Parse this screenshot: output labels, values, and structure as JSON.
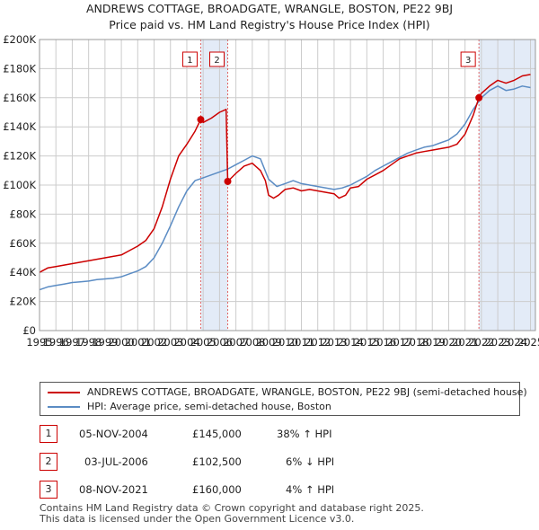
{
  "chart_data": {
    "type": "line",
    "title": "ANDREWS COTTAGE, BROADGATE, WRANGLE, BOSTON, PE22 9BJ",
    "subtitle": "Price paid vs. HM Land Registry's House Price Index (HPI)",
    "xlim": [
      1995.0,
      2025.3
    ],
    "ylim": [
      0,
      200000
    ],
    "x_ticks": [
      1995,
      1996,
      1997,
      1998,
      1999,
      2000,
      2001,
      2002,
      2003,
      2004,
      2005,
      2006,
      2007,
      2008,
      2009,
      2010,
      2011,
      2012,
      2013,
      2014,
      2015,
      2016,
      2017,
      2018,
      2019,
      2020,
      2021,
      2022,
      2023,
      2024,
      2025
    ],
    "x_tick_labels": [
      "1995",
      "1996",
      "1997",
      "1998",
      "1999",
      "2000",
      "2001",
      "2002",
      "2003",
      "2004",
      "2005",
      "2006",
      "2007",
      "2008",
      "2009",
      "2010",
      "2011",
      "2012",
      "2013",
      "2014",
      "2015",
      "2016",
      "2017",
      "2018",
      "2019",
      "2020",
      "2021",
      "2022",
      "2023",
      "2024",
      "2025"
    ],
    "y_ticks": [
      0,
      20000,
      40000,
      60000,
      80000,
      100000,
      120000,
      140000,
      160000,
      180000,
      200000
    ],
    "y_tick_labels": [
      "£0",
      "£20K",
      "£40K",
      "£60K",
      "£80K",
      "£100K",
      "£120K",
      "£140K",
      "£160K",
      "£180K",
      "£200K"
    ],
    "grid": true,
    "shaded_ranges": [
      [
        2004.85,
        2006.5
      ],
      [
        2021.85,
        2025.3
      ]
    ],
    "series": [
      {
        "name": "ANDREWS COTTAGE, BROADGATE, WRANGLE, BOSTON, PE22 9BJ (semi-detached house)",
        "color": "#cc0000",
        "x": [
          1995.0,
          1995.5,
          1996.0,
          1996.5,
          1997.0,
          1997.5,
          1998.0,
          1998.5,
          1999.0,
          1999.5,
          2000.0,
          2000.5,
          2001.0,
          2001.5,
          2002.0,
          2002.5,
          2003.0,
          2003.5,
          2004.0,
          2004.5,
          2004.85,
          2005.0,
          2005.5,
          2006.0,
          2006.4,
          2006.5,
          2007.0,
          2007.5,
          2008.0,
          2008.5,
          2008.8,
          2009.0,
          2009.3,
          2009.6,
          2010.0,
          2010.5,
          2011.0,
          2011.5,
          2012.0,
          2012.5,
          2013.0,
          2013.3,
          2013.7,
          2014.0,
          2014.5,
          2015.0,
          2015.5,
          2016.0,
          2016.5,
          2017.0,
          2017.5,
          2018.0,
          2018.5,
          2019.0,
          2019.5,
          2020.0,
          2020.5,
          2021.0,
          2021.5,
          2021.85,
          2022.0,
          2022.5,
          2023.0,
          2023.5,
          2024.0,
          2024.5,
          2025.0
        ],
        "values": [
          40000,
          43000,
          44000,
          45000,
          46000,
          47000,
          48000,
          49000,
          50000,
          51000,
          52000,
          55000,
          58000,
          62000,
          70000,
          85000,
          104000,
          120000,
          128000,
          137000,
          145000,
          143000,
          146000,
          150000,
          152000,
          102500,
          108000,
          113000,
          115000,
          110000,
          103000,
          93000,
          91000,
          93000,
          97000,
          98000,
          96000,
          97000,
          96000,
          95000,
          94000,
          91000,
          93000,
          98000,
          99000,
          104000,
          107000,
          110000,
          114000,
          118000,
          120000,
          122000,
          123000,
          124000,
          125000,
          126000,
          128000,
          135000,
          148000,
          160000,
          163000,
          168000,
          172000,
          170000,
          172000,
          175000,
          176000
        ]
      },
      {
        "name": "HPI: Average price, semi-detached house, Boston",
        "color": "#5b8cc4",
        "x": [
          1995.0,
          1995.5,
          1996.0,
          1996.5,
          1997.0,
          1997.5,
          1998.0,
          1998.5,
          1999.0,
          1999.5,
          2000.0,
          2000.5,
          2001.0,
          2001.5,
          2002.0,
          2002.5,
          2003.0,
          2003.5,
          2004.0,
          2004.5,
          2005.0,
          2005.5,
          2006.0,
          2006.5,
          2007.0,
          2007.5,
          2008.0,
          2008.5,
          2009.0,
          2009.5,
          2010.0,
          2010.5,
          2011.0,
          2011.5,
          2012.0,
          2012.5,
          2013.0,
          2013.5,
          2014.0,
          2014.5,
          2015.0,
          2015.5,
          2016.0,
          2016.5,
          2017.0,
          2017.5,
          2018.0,
          2018.5,
          2019.0,
          2019.5,
          2020.0,
          2020.5,
          2021.0,
          2021.5,
          2022.0,
          2022.5,
          2023.0,
          2023.5,
          2024.0,
          2024.5,
          2025.0
        ],
        "values": [
          28000,
          30000,
          31000,
          32000,
          33000,
          33500,
          34000,
          35000,
          35500,
          36000,
          37000,
          39000,
          41000,
          44000,
          50000,
          60000,
          72000,
          85000,
          96000,
          103000,
          105000,
          107000,
          109000,
          111000,
          114000,
          117000,
          120000,
          118000,
          104000,
          99000,
          101000,
          103000,
          101000,
          100000,
          99000,
          98000,
          97000,
          98000,
          100000,
          103000,
          106000,
          110000,
          113000,
          116000,
          119000,
          122000,
          124000,
          126000,
          127000,
          129000,
          131000,
          135000,
          142000,
          152000,
          160000,
          165000,
          168000,
          165000,
          166000,
          168000,
          167000
        ]
      }
    ],
    "transactions": [
      {
        "id": "1",
        "x": 2004.85,
        "y": 145000,
        "date": "05-NOV-2004",
        "price": "£145,000",
        "hpi": "38% ↑ HPI"
      },
      {
        "id": "2",
        "x": 2006.5,
        "y": 102500,
        "date": "03-JUL-2006",
        "price": "£102,500",
        "hpi": "6% ↓ HPI"
      },
      {
        "id": "3",
        "x": 2021.85,
        "y": 160000,
        "date": "08-NOV-2021",
        "price": "£160,000",
        "hpi": "4% ↑ HPI"
      }
    ],
    "colors": {
      "shade": "#dce6f5",
      "grid": "#cccccc",
      "axis": "#333333",
      "vline": "#e06666"
    }
  },
  "footer": {
    "line1": "Contains HM Land Registry data © Crown copyright and database right 2025.",
    "line2": "This data is licensed under the Open Government Licence v3.0."
  }
}
